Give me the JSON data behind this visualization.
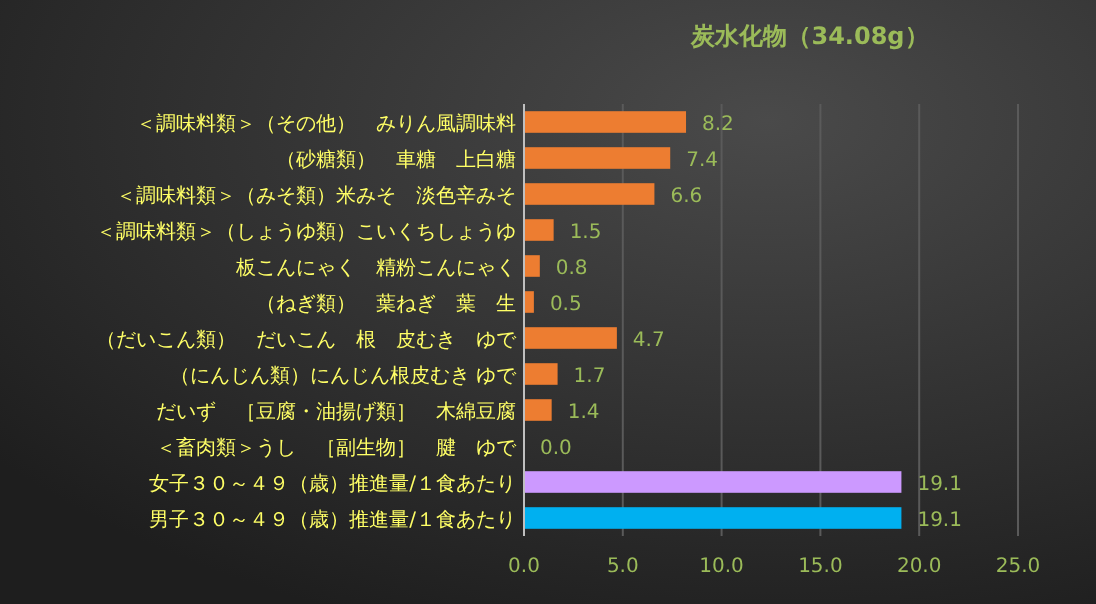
{
  "chart_data": {
    "type": "bar",
    "orientation": "horizontal",
    "title": "炭水化物（34.08g）",
    "categories": [
      "＜調味料類＞（その他）　みりん風調味料",
      "（砂糖類）　車糖　上白糖",
      "＜調味料類＞（みそ類）米みそ　淡色辛みそ",
      "＜調味料類＞（しょうゆ類）こいくちしょうゆ",
      "板こんにゃく　精粉こんにゃく",
      "（ねぎ類）　葉ねぎ　葉　生",
      "（だいこん類）　だいこん　根　皮むき　ゆで",
      "（にんじん類）にんじん根皮むき ゆで",
      "だいず　［豆腐・油揚げ類］　木綿豆腐",
      "＜畜肉類＞うし　［副生物］　腱　ゆで",
      "女子３０～４９（歳）推進量/１食あたり",
      "男子３０～４９（歳）推進量/１食あたり"
    ],
    "values": [
      8.2,
      7.4,
      6.6,
      1.5,
      0.8,
      0.5,
      4.7,
      1.7,
      1.4,
      0.0,
      19.1,
      19.1
    ],
    "value_labels": [
      "8.2",
      "7.4",
      "6.6",
      "1.5",
      "0.8",
      "0.5",
      "4.7",
      "1.7",
      "1.4",
      "0.0",
      "19.1",
      "19.1"
    ],
    "colors": [
      "#ed7d31",
      "#ed7d31",
      "#ed7d31",
      "#ed7d31",
      "#ed7d31",
      "#ed7d31",
      "#ed7d31",
      "#ed7d31",
      "#ed7d31",
      "#ed7d31",
      "#cc99ff",
      "#00b0f0"
    ],
    "xlim": [
      0,
      25
    ],
    "xticks": [
      {
        "value": 0,
        "label": "0.0"
      },
      {
        "value": 5,
        "label": "5.0"
      },
      {
        "value": 10,
        "label": "10.0"
      },
      {
        "value": 15,
        "label": "15.0"
      },
      {
        "value": 20,
        "label": "20.0"
      },
      {
        "value": 25,
        "label": "25.0"
      }
    ],
    "grid": "x"
  }
}
